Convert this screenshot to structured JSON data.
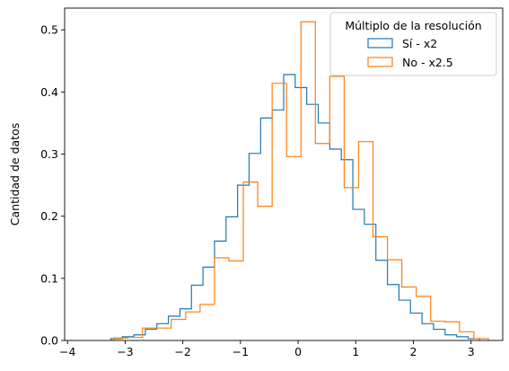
{
  "chart_data": {
    "type": "histogram",
    "ylabel": "Cantidad de datos",
    "xlabel": "",
    "title": "",
    "xlim": [
      -4.05,
      3.55
    ],
    "ylim": [
      0,
      0.535
    ],
    "x_ticks": [
      -4,
      -3,
      -2,
      -1,
      0,
      1,
      2,
      3
    ],
    "y_ticks": [
      0.0,
      0.1,
      0.2,
      0.3,
      0.4,
      0.5
    ],
    "x_tick_labels": [
      "−4",
      "−3",
      "−2",
      "−1",
      "0",
      "1",
      "2",
      "3"
    ],
    "y_tick_labels": [
      "0.0",
      "0.1",
      "0.2",
      "0.3",
      "0.4",
      "0.5"
    ],
    "legend": {
      "title": "Múltiplo de la resolución",
      "position": "top-right"
    },
    "series": [
      {
        "name": "Sí - x2",
        "color": "#1f77b4",
        "edges": [
          -3.25,
          -3.05,
          -2.85,
          -2.65,
          -2.45,
          -2.25,
          -2.05,
          -1.85,
          -1.65,
          -1.45,
          -1.25,
          -1.05,
          -0.85,
          -0.65,
          -0.45,
          -0.25,
          -0.05,
          0.15,
          0.35,
          0.55,
          0.75,
          0.95,
          1.15,
          1.35,
          1.55,
          1.75,
          1.95,
          2.15,
          2.35,
          2.55,
          2.75,
          2.95,
          3.15
        ],
        "values": [
          0.003,
          0.006,
          0.009,
          0.018,
          0.027,
          0.039,
          0.051,
          0.089,
          0.118,
          0.16,
          0.199,
          0.25,
          0.301,
          0.358,
          0.371,
          0.428,
          0.407,
          0.38,
          0.35,
          0.308,
          0.291,
          0.211,
          0.187,
          0.129,
          0.09,
          0.065,
          0.044,
          0.027,
          0.018,
          0.009,
          0.006,
          0.003
        ]
      },
      {
        "name": "No - x2.5",
        "color": "#ff7f0e",
        "edges": [
          -3.2,
          -2.95,
          -2.7,
          -2.45,
          -2.2,
          -1.95,
          -1.7,
          -1.45,
          -1.2,
          -0.95,
          -0.7,
          -0.45,
          -0.2,
          0.05,
          0.3,
          0.55,
          0.8,
          1.05,
          1.3,
          1.55,
          1.8,
          2.05,
          2.3,
          2.55,
          2.8,
          3.05,
          3.3
        ],
        "values": [
          0.004,
          0.005,
          0.02,
          0.02,
          0.034,
          0.046,
          0.058,
          0.133,
          0.128,
          0.255,
          0.216,
          0.414,
          0.296,
          0.513,
          0.317,
          0.425,
          0.246,
          0.32,
          0.167,
          0.13,
          0.086,
          0.071,
          0.031,
          0.03,
          0.014,
          0.003
        ]
      }
    ]
  }
}
